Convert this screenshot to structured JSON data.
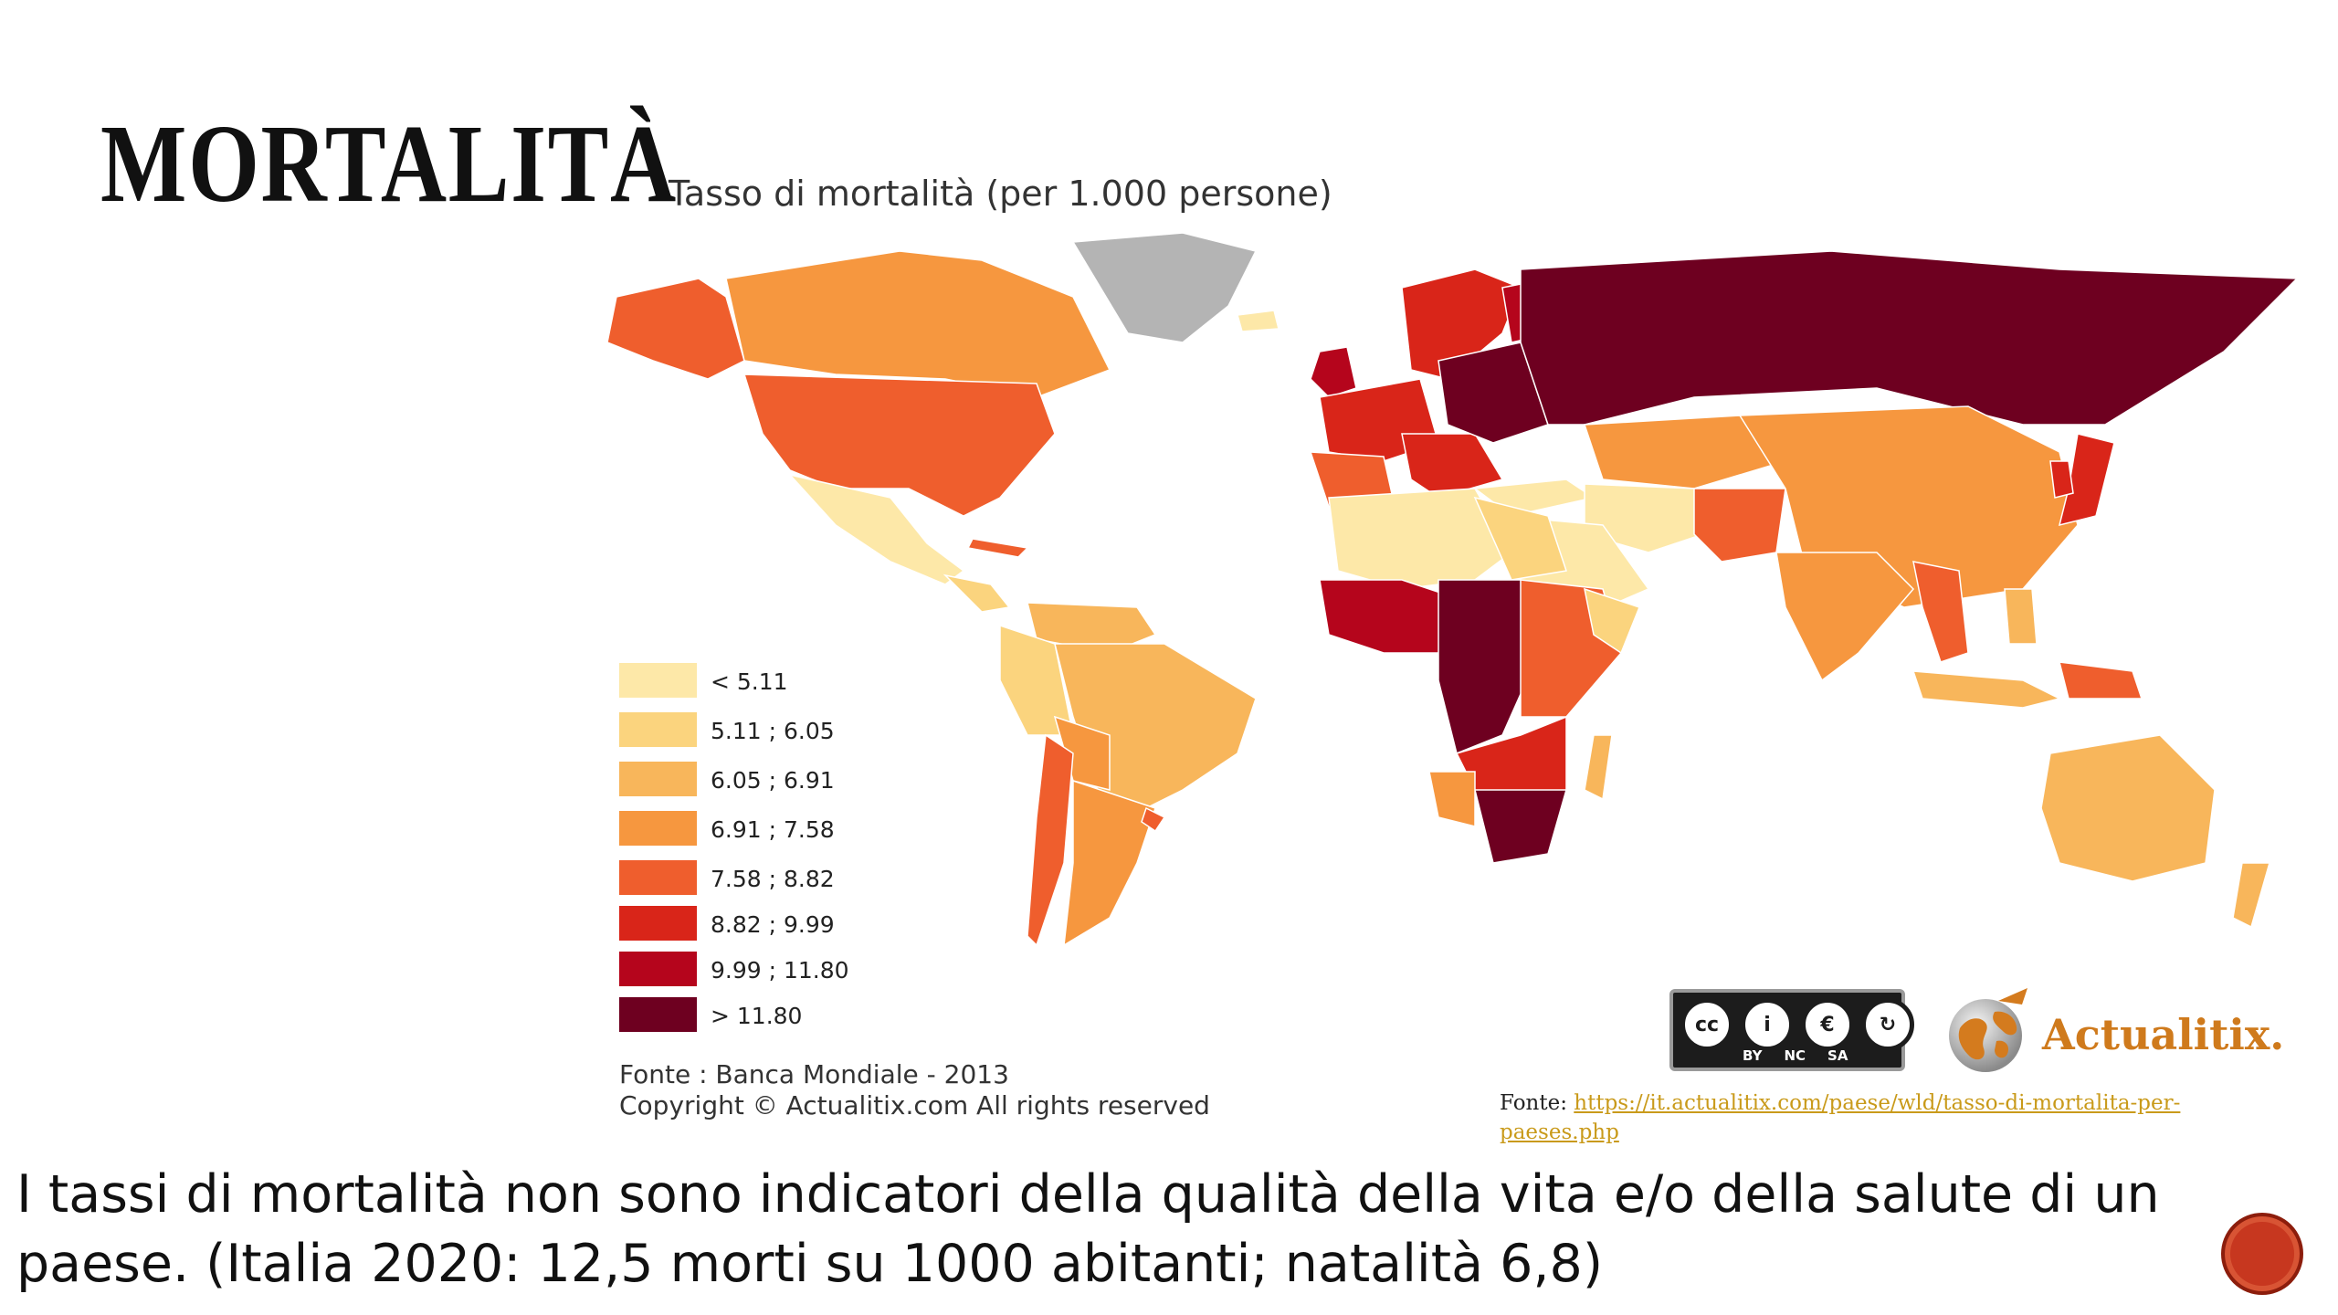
{
  "slide": {
    "title": "MORTALITÀ",
    "body_text": "I tassi di mortalità non sono indicatori della qualità della vita e/o della salute di un paese. (Italia 2020: 12,5 morti su 1000 abitanti; natalità 6,8)"
  },
  "map": {
    "title": "Tasso di mortalità (per 1.000 persone)",
    "no_data_color": "#b4b4b4",
    "legend": [
      {
        "label": "< 5.11",
        "color": "#fde8a8"
      },
      {
        "label": "5.11 ; 6.05",
        "color": "#fbd47e"
      },
      {
        "label": "6.05 ; 6.91",
        "color": "#f8b65b"
      },
      {
        "label": "6.91 ; 7.58",
        "color": "#f6973f"
      },
      {
        "label": "7.58 ; 8.82",
        "color": "#ef5e2d"
      },
      {
        "label": "8.82 ; 9.99",
        "color": "#d92519"
      },
      {
        "label": "9.99 ; 11.80",
        "color": "#b5051c"
      },
      {
        "label": "> 11.80",
        "color": "#6e0020"
      }
    ],
    "source": "Fonte : Banca Mondiale - 2013",
    "copyright": "Copyright © Actualitix.com All rights reserved"
  },
  "license": {
    "cc_symbols": [
      "cc",
      "i",
      "€",
      "↻"
    ],
    "cc_labels": [
      "BY",
      "NC",
      "SA"
    ]
  },
  "brand": {
    "name": "Actualitix",
    "dot": "."
  },
  "credit": {
    "label": "Fonte:",
    "url": "https://it.actualitix.com/paese/wld/tasso-di-mortalita-per-paeses.php"
  }
}
